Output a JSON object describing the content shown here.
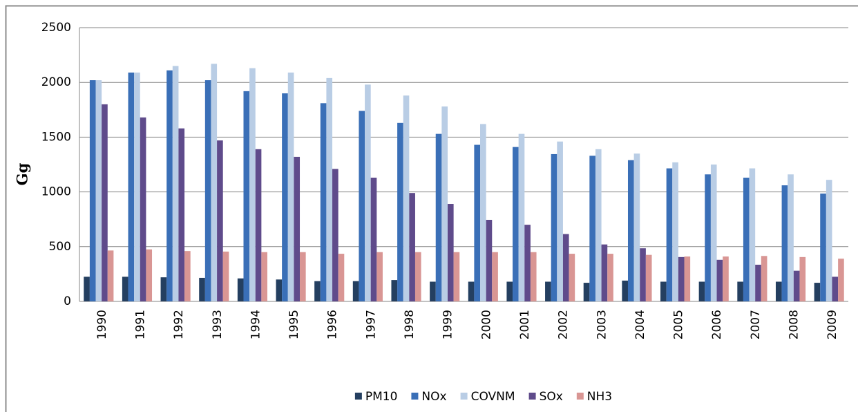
{
  "chart_data": {
    "type": "bar",
    "y_label": "Gg",
    "categories": [
      "1990",
      "1991",
      "1992",
      "1993",
      "1994",
      "1995",
      "1996",
      "1997",
      "1998",
      "1999",
      "2000",
      "2001",
      "2002",
      "2003",
      "2004",
      "2005",
      "2006",
      "2007",
      "2008",
      "2009"
    ],
    "series": [
      {
        "name": "PM10",
        "color": "#243f60",
        "values": [
          225,
          225,
          220,
          215,
          210,
          200,
          185,
          185,
          195,
          180,
          180,
          180,
          180,
          170,
          190,
          180,
          180,
          180,
          180,
          170
        ]
      },
      {
        "name": "NOx",
        "color": "#3a6fb7",
        "values": [
          2020,
          2090,
          2110,
          2020,
          1920,
          1900,
          1810,
          1740,
          1630,
          1530,
          1430,
          1410,
          1345,
          1330,
          1290,
          1215,
          1160,
          1130,
          1060,
          985
        ]
      },
      {
        "name": "COVNM",
        "color": "#b9cde5",
        "values": [
          2020,
          2090,
          2150,
          2170,
          2130,
          2090,
          2040,
          1980,
          1880,
          1780,
          1620,
          1530,
          1460,
          1390,
          1350,
          1270,
          1250,
          1215,
          1160,
          1110
        ]
      },
      {
        "name": "SOx",
        "color": "#5f4b8b",
        "values": [
          1800,
          1680,
          1580,
          1470,
          1390,
          1320,
          1210,
          1130,
          990,
          890,
          745,
          700,
          615,
          520,
          485,
          405,
          380,
          335,
          280,
          225
        ]
      },
      {
        "name": "NH3",
        "color": "#d99694",
        "values": [
          465,
          475,
          460,
          455,
          450,
          450,
          435,
          450,
          450,
          450,
          450,
          450,
          435,
          435,
          425,
          410,
          410,
          415,
          405,
          390
        ]
      }
    ],
    "ylim": [
      0,
      2500
    ],
    "yticks": [
      0,
      500,
      1000,
      1500,
      2000,
      2500
    ],
    "grid": true,
    "legend": "bottom"
  }
}
